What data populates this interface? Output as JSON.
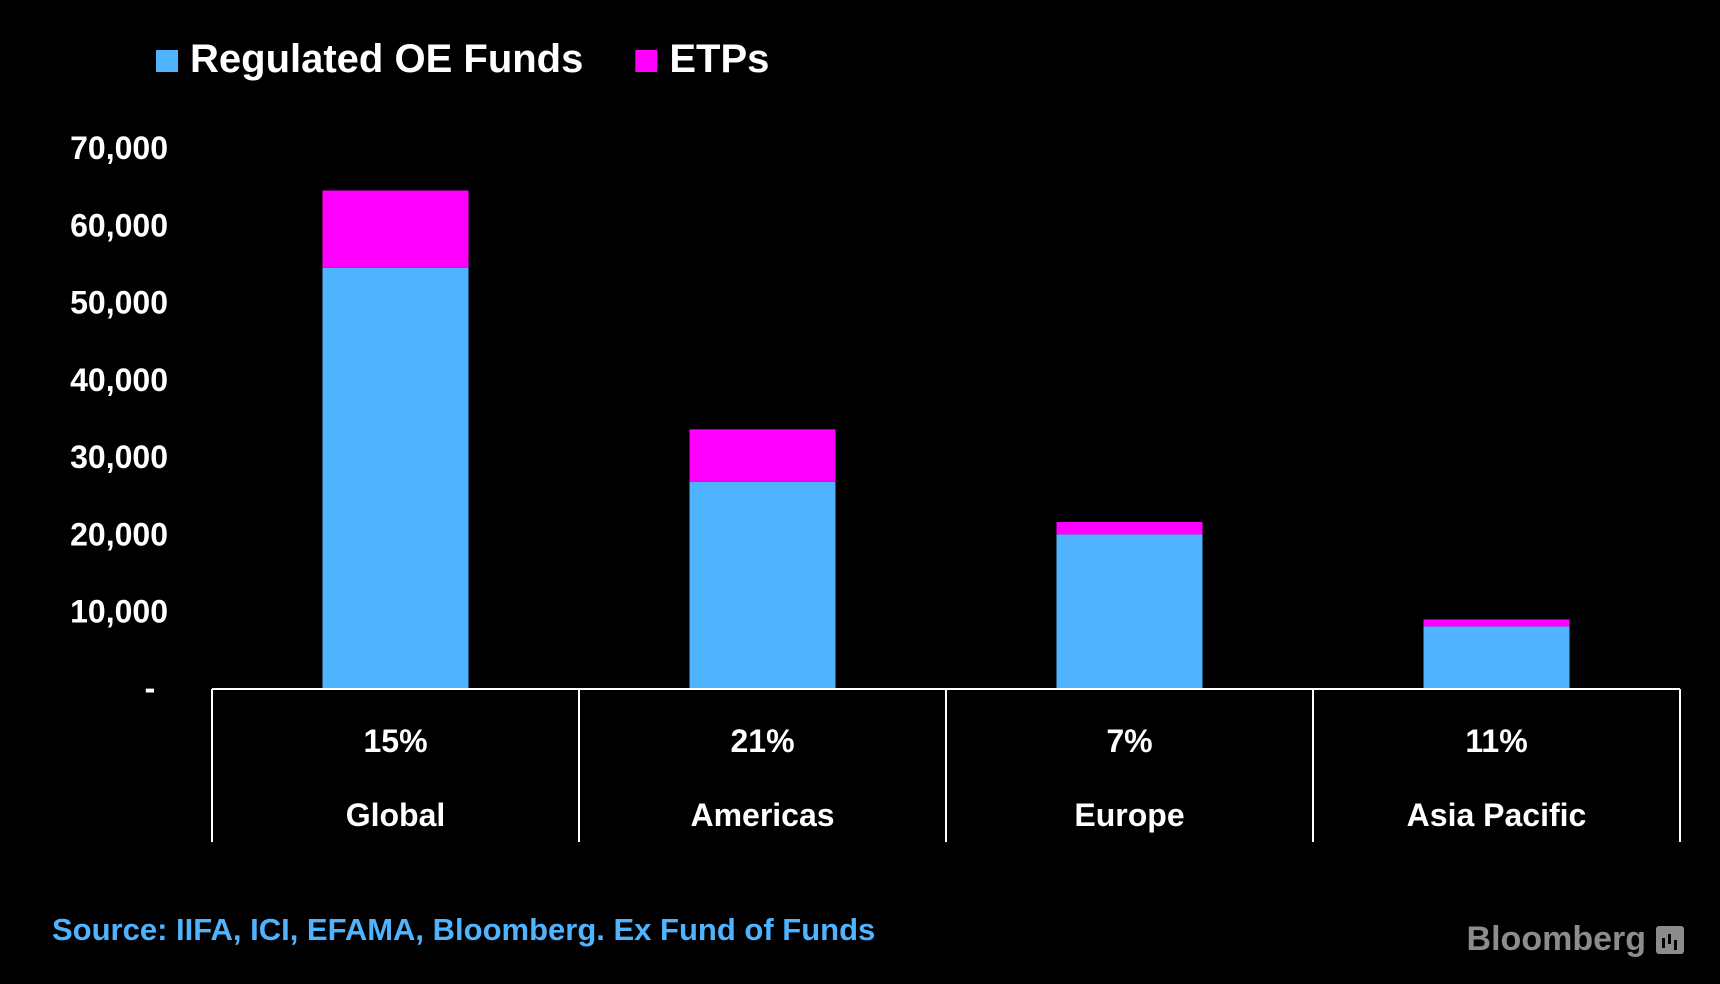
{
  "chart_data": {
    "type": "bar",
    "stacked": true,
    "categories": [
      "Global",
      "Americas",
      "Europe",
      "Asia Pacific"
    ],
    "category_annotations": [
      "15%",
      "21%",
      "7%",
      "11%"
    ],
    "series": [
      {
        "name": "Regulated OE Funds",
        "color": "#4fb3ff",
        "values": [
          54500,
          26800,
          20000,
          8100
        ]
      },
      {
        "name": "ETPs",
        "color": "#ff00ff",
        "values": [
          10000,
          6800,
          1600,
          900
        ]
      }
    ],
    "ylim": [
      0,
      70000
    ],
    "yticks": [
      0,
      10000,
      20000,
      30000,
      40000,
      50000,
      60000,
      70000
    ],
    "ytick_labels": [
      "-",
      "10,000",
      "20,000",
      "30,000",
      "40,000",
      "50,000",
      "60,000",
      "70,000"
    ],
    "title": "",
    "xlabel": "",
    "ylabel": "",
    "legend_position": "top-left"
  },
  "footer": {
    "source": "Source: IIFA, ICI, EFAMA, Bloomberg. Ex Fund of Funds",
    "brand": "Bloomberg"
  }
}
